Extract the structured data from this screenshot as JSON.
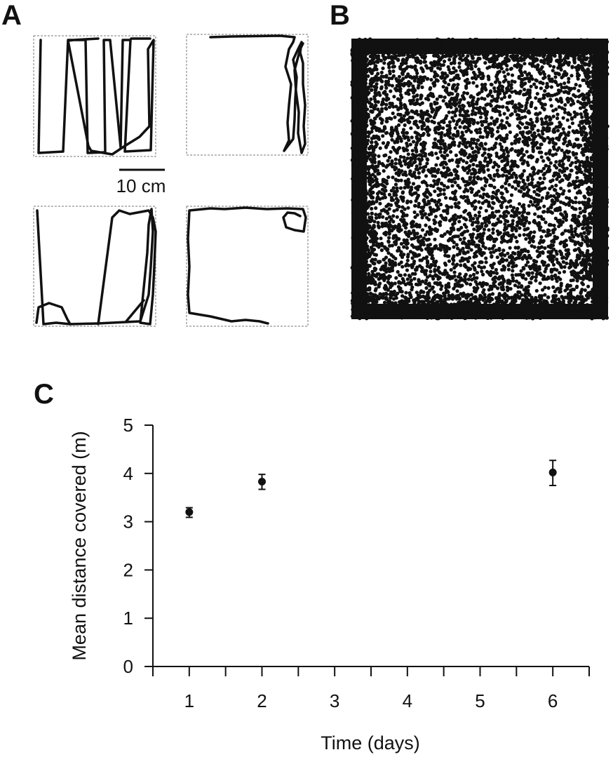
{
  "panels": {
    "a": "A",
    "b": "B",
    "c": "C"
  },
  "scale_bar": {
    "label": "10 cm"
  },
  "chart_data": {
    "type": "scatter",
    "x": [
      1,
      2,
      6
    ],
    "y": [
      3.2,
      3.83,
      4.02
    ],
    "yerr_low": [
      0.11,
      0.16,
      0.27
    ],
    "yerr_high": [
      0.09,
      0.15,
      0.25
    ],
    "xlabel": "Time (days)",
    "ylabel": "Mean distance covered (m)",
    "xlim": [
      0.5,
      6.5
    ],
    "ylim": [
      0,
      5
    ],
    "xticks": [
      1,
      2,
      3,
      4,
      5,
      6
    ],
    "yticks": [
      0,
      1,
      2,
      3,
      4,
      5
    ],
    "grid": false,
    "marker_color": "#111111"
  }
}
